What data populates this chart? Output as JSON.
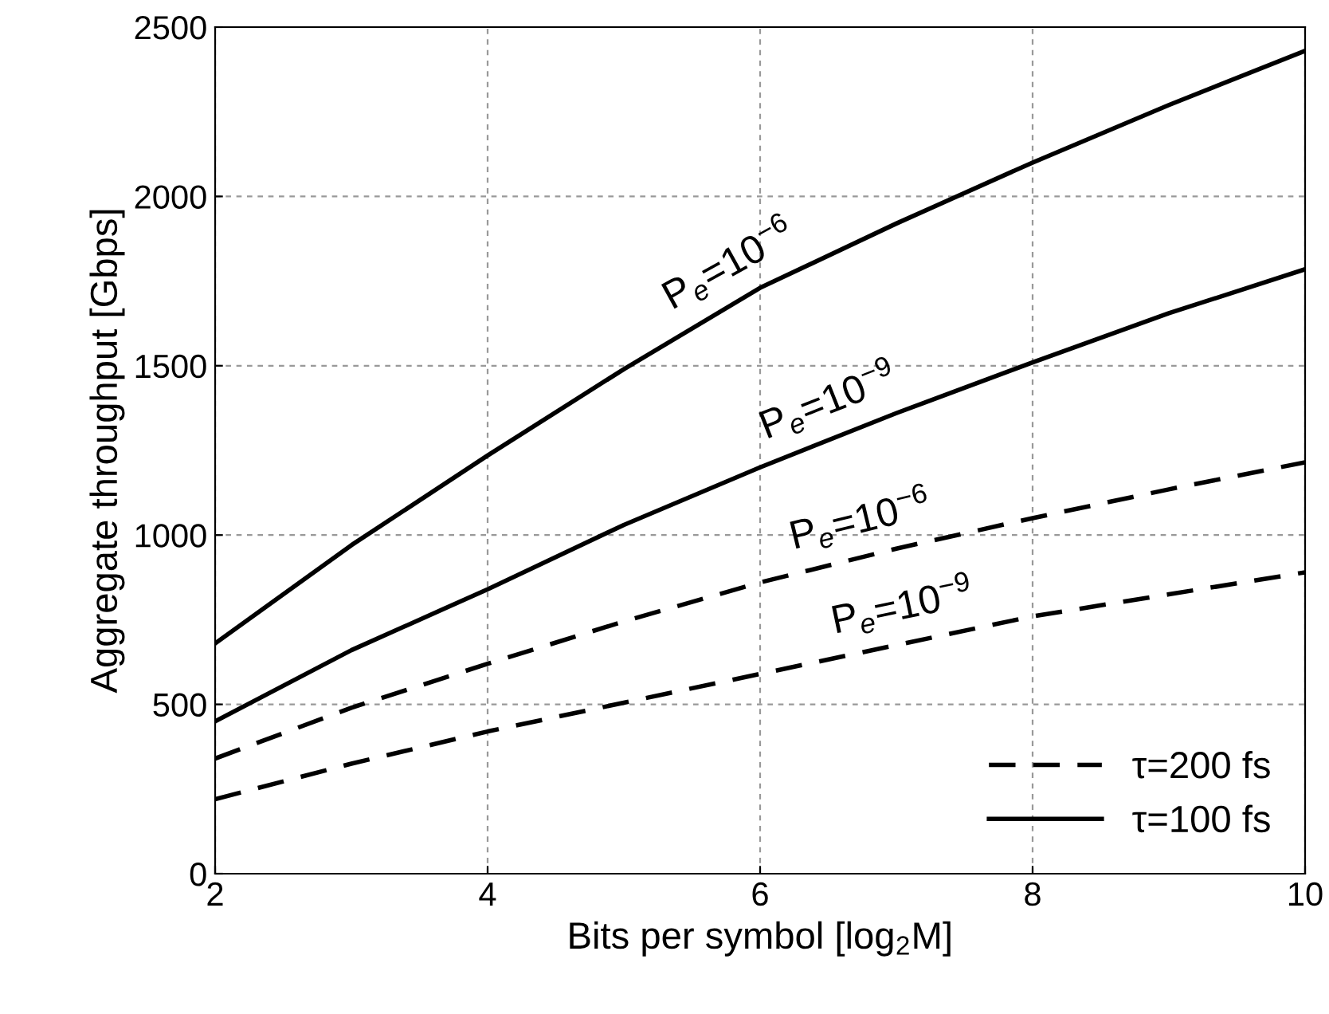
{
  "chart_data": {
    "type": "line",
    "xlabel": "Bits per symbol [log$_{2}$M]",
    "ylabel": "Aggregate throughput [Gbps]",
    "x": [
      2,
      3,
      4,
      5,
      6,
      7,
      8,
      9,
      10
    ],
    "series": [
      {
        "name": "τ=200 fs",
        "color": "#000000",
        "line_style": "dashed",
        "values": [
          340,
          490,
          620,
          745,
          860,
          960,
          1050,
          1135,
          1215
        ]
      },
      {
        "color": "#000000",
        "line_style": "dashed",
        "values": [
          220,
          325,
          420,
          505,
          590,
          675,
          760,
          825,
          890
        ]
      },
      {
        "name": "τ=100 fs",
        "color": "#000000",
        "line_style": "solid",
        "values": [
          680,
          970,
          1235,
          1490,
          1730,
          1920,
          2100,
          2270,
          2430
        ]
      },
      {
        "color": "#000000",
        "line_style": "solid",
        "values": [
          450,
          660,
          840,
          1030,
          1200,
          1360,
          1510,
          1655,
          1785
        ]
      }
    ],
    "annotations": [
      {
        "text": "P$_{e}$=10$^{−6}$",
        "x": 5.9,
        "y": 1706
      },
      {
        "text": "P$_{e}$=10$^{−9}$",
        "x": 6.6,
        "y": 1296
      },
      {
        "text": "P$_{e}$=10$^{−6}$",
        "x": 6.8,
        "y": 940
      },
      {
        "text": "P$_{e}$=10$^{−9}$",
        "x": 7.1,
        "y": 684
      }
    ],
    "xlim": [
      2,
      10
    ],
    "ylim": [
      0,
      2500
    ],
    "xticks": [
      2,
      4,
      6,
      8,
      10
    ],
    "yticks": [
      0,
      500,
      1000,
      1500,
      2000,
      2500
    ],
    "grid": true,
    "legend": "bottom right",
    "marker": "none"
  }
}
